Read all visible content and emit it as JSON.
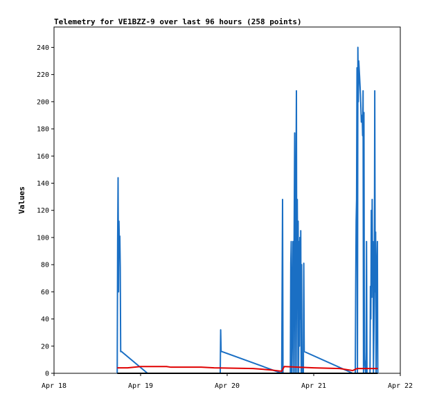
{
  "chart_data": {
    "type": "line",
    "title": "Telemetry for VE1BZZ-9 over last 96 hours (258 points)",
    "xlabel": "",
    "ylabel": "Values",
    "xlim": [
      "Apr 18",
      "Apr 22"
    ],
    "ylim": [
      0,
      255
    ],
    "x_tick_labels": [
      "Apr 18",
      "Apr 19",
      "Apr 20",
      "Apr 21",
      "Apr 22"
    ],
    "y_ticks": [
      0,
      20,
      40,
      60,
      80,
      100,
      120,
      140,
      160,
      180,
      200,
      220,
      240
    ],
    "grid": false,
    "legend": "none",
    "series": [
      {
        "color": "#1a6fc4",
        "points": [
          [
            18.73,
            0
          ],
          [
            18.735,
            97
          ],
          [
            18.74,
            144
          ],
          [
            18.745,
            60
          ],
          [
            18.75,
            112
          ],
          [
            18.755,
            96
          ],
          [
            18.76,
            101
          ],
          [
            18.765,
            78
          ],
          [
            18.77,
            16
          ],
          [
            18.78,
            16
          ],
          [
            19.08,
            0
          ],
          [
            19.92,
            0
          ],
          [
            19.925,
            32
          ],
          [
            19.93,
            16
          ],
          [
            19.94,
            16
          ],
          [
            20.63,
            0
          ],
          [
            20.64,
            128
          ],
          [
            20.645,
            0
          ],
          [
            20.73,
            0
          ],
          [
            20.735,
            81
          ],
          [
            20.74,
            97
          ],
          [
            20.745,
            0
          ],
          [
            20.76,
            97
          ],
          [
            20.765,
            0
          ],
          [
            20.78,
            177
          ],
          [
            20.785,
            0
          ],
          [
            20.8,
            208
          ],
          [
            20.805,
            0
          ],
          [
            20.81,
            128
          ],
          [
            20.815,
            60
          ],
          [
            20.82,
            112
          ],
          [
            20.825,
            0
          ],
          [
            20.83,
            97
          ],
          [
            20.835,
            20
          ],
          [
            20.84,
            100
          ],
          [
            20.845,
            40
          ],
          [
            20.85,
            105
          ],
          [
            20.855,
            0
          ],
          [
            20.86,
            80
          ],
          [
            20.865,
            0
          ],
          [
            20.88,
            0
          ],
          [
            20.885,
            81
          ],
          [
            20.89,
            16
          ],
          [
            21.45,
            0
          ],
          [
            21.48,
            0
          ],
          [
            21.485,
            65
          ],
          [
            21.49,
            112
          ],
          [
            21.495,
            128
          ],
          [
            21.5,
            225
          ],
          [
            21.505,
            0
          ],
          [
            21.51,
            240
          ],
          [
            21.515,
            200
          ],
          [
            21.52,
            230
          ],
          [
            21.53,
            218
          ],
          [
            21.54,
            205
          ],
          [
            21.55,
            185
          ],
          [
            21.56,
            190
          ],
          [
            21.565,
            175
          ],
          [
            21.57,
            208
          ],
          [
            21.575,
            0
          ],
          [
            21.58,
            192
          ],
          [
            21.585,
            10
          ],
          [
            21.6,
            0
          ],
          [
            21.605,
            16
          ],
          [
            21.61,
            97
          ],
          [
            21.615,
            0
          ],
          [
            21.65,
            0
          ],
          [
            21.655,
            64
          ],
          [
            21.66,
            40
          ],
          [
            21.665,
            120
          ],
          [
            21.67,
            56
          ],
          [
            21.675,
            128
          ],
          [
            21.68,
            64
          ],
          [
            21.685,
            97
          ],
          [
            21.69,
            0
          ],
          [
            21.7,
            60
          ],
          [
            21.705,
            208
          ],
          [
            21.71,
            60
          ],
          [
            21.715,
            104
          ],
          [
            21.72,
            0
          ],
          [
            21.73,
            80
          ],
          [
            21.735,
            97
          ],
          [
            21.74,
            0
          ]
        ]
      },
      {
        "color": "#e00000",
        "points": [
          [
            18.73,
            4
          ],
          [
            18.85,
            4
          ],
          [
            19.0,
            5
          ],
          [
            19.3,
            5
          ],
          [
            19.35,
            4.5
          ],
          [
            19.7,
            4.5
          ],
          [
            19.85,
            4
          ],
          [
            20.3,
            3.5
          ],
          [
            20.5,
            2.5
          ],
          [
            20.63,
            1.5
          ],
          [
            20.66,
            5
          ],
          [
            21.0,
            4
          ],
          [
            21.3,
            3.5
          ],
          [
            21.45,
            2
          ],
          [
            21.5,
            3.5
          ],
          [
            21.74,
            3.5
          ]
        ]
      },
      {
        "color": "#000000",
        "points": [
          [
            18.73,
            0
          ],
          [
            21.74,
            0
          ]
        ]
      }
    ]
  }
}
